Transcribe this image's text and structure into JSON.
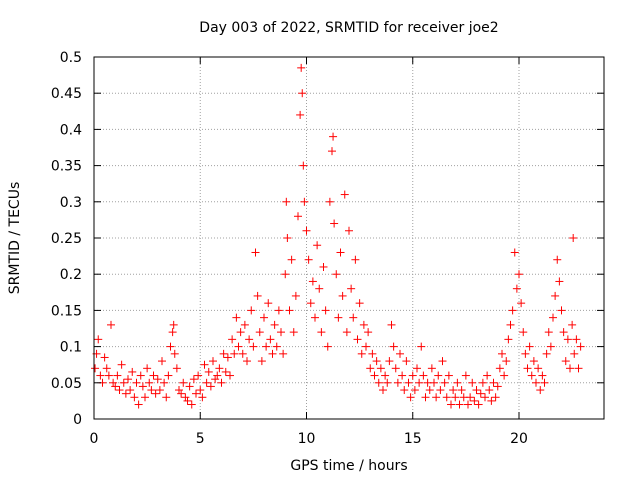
{
  "chart_data": {
    "type": "scatter",
    "title": "Day 003 of 2022, SRMTID for receiver joe2",
    "xlabel": "GPS time / hours",
    "ylabel": "SRMTID / TECUs",
    "xlim": [
      0,
      24
    ],
    "ylim": [
      0,
      0.5
    ],
    "xticks": [
      0,
      5,
      10,
      15,
      20
    ],
    "xtick_labels": [
      "0",
      "5",
      "10",
      "15",
      "20"
    ],
    "yticks": [
      0,
      0.05,
      0.1,
      0.15,
      0.2,
      0.25,
      0.3,
      0.35,
      0.4,
      0.45,
      0.5
    ],
    "ytick_labels": [
      "0",
      "0.05",
      "0.1",
      "0.15",
      "0.2",
      "0.25",
      "0.3",
      "0.35",
      "0.4",
      "0.45",
      "0.5"
    ],
    "grid": true,
    "marker": "+",
    "series": [
      {
        "name": "SRMTID",
        "color": "#ff0000",
        "points": [
          [
            0.05,
            0.07
          ],
          [
            0.12,
            0.09
          ],
          [
            0.2,
            0.11
          ],
          [
            0.3,
            0.06
          ],
          [
            0.4,
            0.05
          ],
          [
            0.5,
            0.085
          ],
          [
            0.6,
            0.07
          ],
          [
            0.7,
            0.06
          ],
          [
            0.8,
            0.13
          ],
          [
            0.9,
            0.05
          ],
          [
            1.0,
            0.045
          ],
          [
            1.1,
            0.06
          ],
          [
            1.2,
            0.04
          ],
          [
            1.3,
            0.075
          ],
          [
            1.4,
            0.05
          ],
          [
            1.5,
            0.035
          ],
          [
            1.6,
            0.055
          ],
          [
            1.7,
            0.04
          ],
          [
            1.8,
            0.065
          ],
          [
            1.9,
            0.03
          ],
          [
            2.0,
            0.05
          ],
          [
            2.1,
            0.02
          ],
          [
            2.2,
            0.06
          ],
          [
            2.3,
            0.045
          ],
          [
            2.4,
            0.03
          ],
          [
            2.5,
            0.07
          ],
          [
            2.6,
            0.05
          ],
          [
            2.7,
            0.04
          ],
          [
            2.8,
            0.06
          ],
          [
            2.9,
            0.035
          ],
          [
            3.0,
            0.055
          ],
          [
            3.1,
            0.04
          ],
          [
            3.2,
            0.08
          ],
          [
            3.3,
            0.05
          ],
          [
            3.4,
            0.03
          ],
          [
            3.5,
            0.06
          ],
          [
            3.6,
            0.1
          ],
          [
            3.7,
            0.12
          ],
          [
            3.75,
            0.13
          ],
          [
            3.8,
            0.09
          ],
          [
            3.9,
            0.07
          ],
          [
            4.0,
            0.04
          ],
          [
            4.1,
            0.035
          ],
          [
            4.2,
            0.05
          ],
          [
            4.3,
            0.03
          ],
          [
            4.4,
            0.025
          ],
          [
            4.5,
            0.045
          ],
          [
            4.6,
            0.02
          ],
          [
            4.7,
            0.055
          ],
          [
            4.8,
            0.035
          ],
          [
            4.9,
            0.06
          ],
          [
            5.0,
            0.04
          ],
          [
            5.1,
            0.03
          ],
          [
            5.2,
            0.075
          ],
          [
            5.3,
            0.05
          ],
          [
            5.4,
            0.065
          ],
          [
            5.5,
            0.045
          ],
          [
            5.6,
            0.08
          ],
          [
            5.7,
            0.055
          ],
          [
            5.8,
            0.06
          ],
          [
            5.9,
            0.07
          ],
          [
            6.0,
            0.05
          ],
          [
            6.1,
            0.09
          ],
          [
            6.2,
            0.065
          ],
          [
            6.3,
            0.085
          ],
          [
            6.4,
            0.06
          ],
          [
            6.5,
            0.11
          ],
          [
            6.6,
            0.09
          ],
          [
            6.7,
            0.14
          ],
          [
            6.8,
            0.1
          ],
          [
            6.9,
            0.12
          ],
          [
            7.0,
            0.09
          ],
          [
            7.1,
            0.13
          ],
          [
            7.2,
            0.08
          ],
          [
            7.3,
            0.11
          ],
          [
            7.4,
            0.15
          ],
          [
            7.5,
            0.1
          ],
          [
            7.6,
            0.23
          ],
          [
            7.7,
            0.17
          ],
          [
            7.8,
            0.12
          ],
          [
            7.9,
            0.08
          ],
          [
            8.0,
            0.14
          ],
          [
            8.1,
            0.1
          ],
          [
            8.2,
            0.16
          ],
          [
            8.3,
            0.11
          ],
          [
            8.4,
            0.09
          ],
          [
            8.5,
            0.13
          ],
          [
            8.6,
            0.1
          ],
          [
            8.7,
            0.15
          ],
          [
            8.8,
            0.12
          ],
          [
            8.9,
            0.09
          ],
          [
            9.0,
            0.2
          ],
          [
            9.05,
            0.3
          ],
          [
            9.1,
            0.25
          ],
          [
            9.2,
            0.15
          ],
          [
            9.3,
            0.22
          ],
          [
            9.4,
            0.12
          ],
          [
            9.5,
            0.17
          ],
          [
            9.6,
            0.28
          ],
          [
            9.7,
            0.42
          ],
          [
            9.75,
            0.485
          ],
          [
            9.8,
            0.45
          ],
          [
            9.85,
            0.35
          ],
          [
            9.9,
            0.3
          ],
          [
            10.0,
            0.26
          ],
          [
            10.1,
            0.22
          ],
          [
            10.2,
            0.16
          ],
          [
            10.3,
            0.19
          ],
          [
            10.4,
            0.14
          ],
          [
            10.5,
            0.24
          ],
          [
            10.6,
            0.18
          ],
          [
            10.7,
            0.12
          ],
          [
            10.8,
            0.21
          ],
          [
            10.9,
            0.15
          ],
          [
            11.0,
            0.1
          ],
          [
            11.1,
            0.3
          ],
          [
            11.2,
            0.37
          ],
          [
            11.25,
            0.39
          ],
          [
            11.3,
            0.27
          ],
          [
            11.4,
            0.2
          ],
          [
            11.5,
            0.14
          ],
          [
            11.6,
            0.23
          ],
          [
            11.7,
            0.17
          ],
          [
            11.8,
            0.31
          ],
          [
            11.9,
            0.12
          ],
          [
            12.0,
            0.26
          ],
          [
            12.1,
            0.18
          ],
          [
            12.2,
            0.14
          ],
          [
            12.3,
            0.22
          ],
          [
            12.4,
            0.11
          ],
          [
            12.5,
            0.16
          ],
          [
            12.6,
            0.09
          ],
          [
            12.7,
            0.13
          ],
          [
            12.8,
            0.1
          ],
          [
            12.9,
            0.12
          ],
          [
            13.0,
            0.07
          ],
          [
            13.1,
            0.09
          ],
          [
            13.2,
            0.06
          ],
          [
            13.3,
            0.08
          ],
          [
            13.4,
            0.05
          ],
          [
            13.5,
            0.07
          ],
          [
            13.6,
            0.04
          ],
          [
            13.7,
            0.06
          ],
          [
            13.8,
            0.05
          ],
          [
            13.9,
            0.08
          ],
          [
            14.0,
            0.13
          ],
          [
            14.1,
            0.1
          ],
          [
            14.2,
            0.07
          ],
          [
            14.3,
            0.05
          ],
          [
            14.4,
            0.09
          ],
          [
            14.5,
            0.06
          ],
          [
            14.6,
            0.04
          ],
          [
            14.7,
            0.08
          ],
          [
            14.8,
            0.05
          ],
          [
            14.9,
            0.03
          ],
          [
            15.0,
            0.06
          ],
          [
            15.1,
            0.04
          ],
          [
            15.2,
            0.07
          ],
          [
            15.3,
            0.05
          ],
          [
            15.4,
            0.1
          ],
          [
            15.5,
            0.06
          ],
          [
            15.6,
            0.03
          ],
          [
            15.7,
            0.05
          ],
          [
            15.8,
            0.04
          ],
          [
            15.9,
            0.07
          ],
          [
            16.0,
            0.05
          ],
          [
            16.1,
            0.03
          ],
          [
            16.2,
            0.06
          ],
          [
            16.3,
            0.04
          ],
          [
            16.4,
            0.08
          ],
          [
            16.5,
            0.05
          ],
          [
            16.6,
            0.03
          ],
          [
            16.7,
            0.06
          ],
          [
            16.8,
            0.02
          ],
          [
            16.9,
            0.04
          ],
          [
            17.0,
            0.03
          ],
          [
            17.1,
            0.05
          ],
          [
            17.2,
            0.02
          ],
          [
            17.3,
            0.04
          ],
          [
            17.4,
            0.03
          ],
          [
            17.5,
            0.06
          ],
          [
            17.6,
            0.02
          ],
          [
            17.7,
            0.03
          ],
          [
            17.8,
            0.05
          ],
          [
            17.9,
            0.025
          ],
          [
            18.0,
            0.04
          ],
          [
            18.1,
            0.02
          ],
          [
            18.2,
            0.035
          ],
          [
            18.3,
            0.05
          ],
          [
            18.4,
            0.03
          ],
          [
            18.5,
            0.06
          ],
          [
            18.6,
            0.04
          ],
          [
            18.7,
            0.025
          ],
          [
            18.8,
            0.05
          ],
          [
            18.9,
            0.03
          ],
          [
            19.0,
            0.045
          ],
          [
            19.1,
            0.07
          ],
          [
            19.2,
            0.09
          ],
          [
            19.3,
            0.06
          ],
          [
            19.4,
            0.08
          ],
          [
            19.5,
            0.11
          ],
          [
            19.6,
            0.13
          ],
          [
            19.7,
            0.15
          ],
          [
            19.8,
            0.23
          ],
          [
            19.9,
            0.18
          ],
          [
            20.0,
            0.2
          ],
          [
            20.1,
            0.16
          ],
          [
            20.2,
            0.12
          ],
          [
            20.3,
            0.09
          ],
          [
            20.4,
            0.07
          ],
          [
            20.5,
            0.1
          ],
          [
            20.6,
            0.06
          ],
          [
            20.7,
            0.08
          ],
          [
            20.8,
            0.05
          ],
          [
            20.9,
            0.07
          ],
          [
            21.0,
            0.04
          ],
          [
            21.1,
            0.06
          ],
          [
            21.2,
            0.05
          ],
          [
            21.3,
            0.09
          ],
          [
            21.4,
            0.12
          ],
          [
            21.5,
            0.1
          ],
          [
            21.6,
            0.14
          ],
          [
            21.7,
            0.17
          ],
          [
            21.8,
            0.22
          ],
          [
            21.9,
            0.19
          ],
          [
            22.0,
            0.15
          ],
          [
            22.1,
            0.12
          ],
          [
            22.2,
            0.08
          ],
          [
            22.3,
            0.11
          ],
          [
            22.4,
            0.07
          ],
          [
            22.5,
            0.13
          ],
          [
            22.55,
            0.25
          ],
          [
            22.6,
            0.09
          ],
          [
            22.7,
            0.11
          ],
          [
            22.8,
            0.07
          ],
          [
            22.9,
            0.1
          ]
        ]
      }
    ]
  }
}
